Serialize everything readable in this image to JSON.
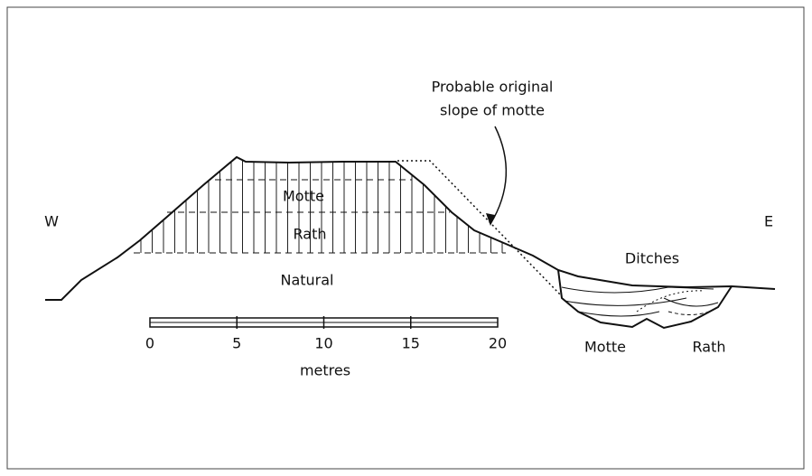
{
  "labels": {
    "west": "W",
    "east": "E",
    "motte": "Motte",
    "rath": "Rath",
    "natural": "Natural",
    "ditches": "Ditches",
    "motte_ditch": "Motte",
    "rath_ditch": "Rath"
  },
  "annotation": {
    "line1": "Probable original",
    "line2": "slope of motte"
  },
  "scale": {
    "ticks": [
      "0",
      "5",
      "10",
      "15",
      "20"
    ],
    "unit": "metres"
  }
}
